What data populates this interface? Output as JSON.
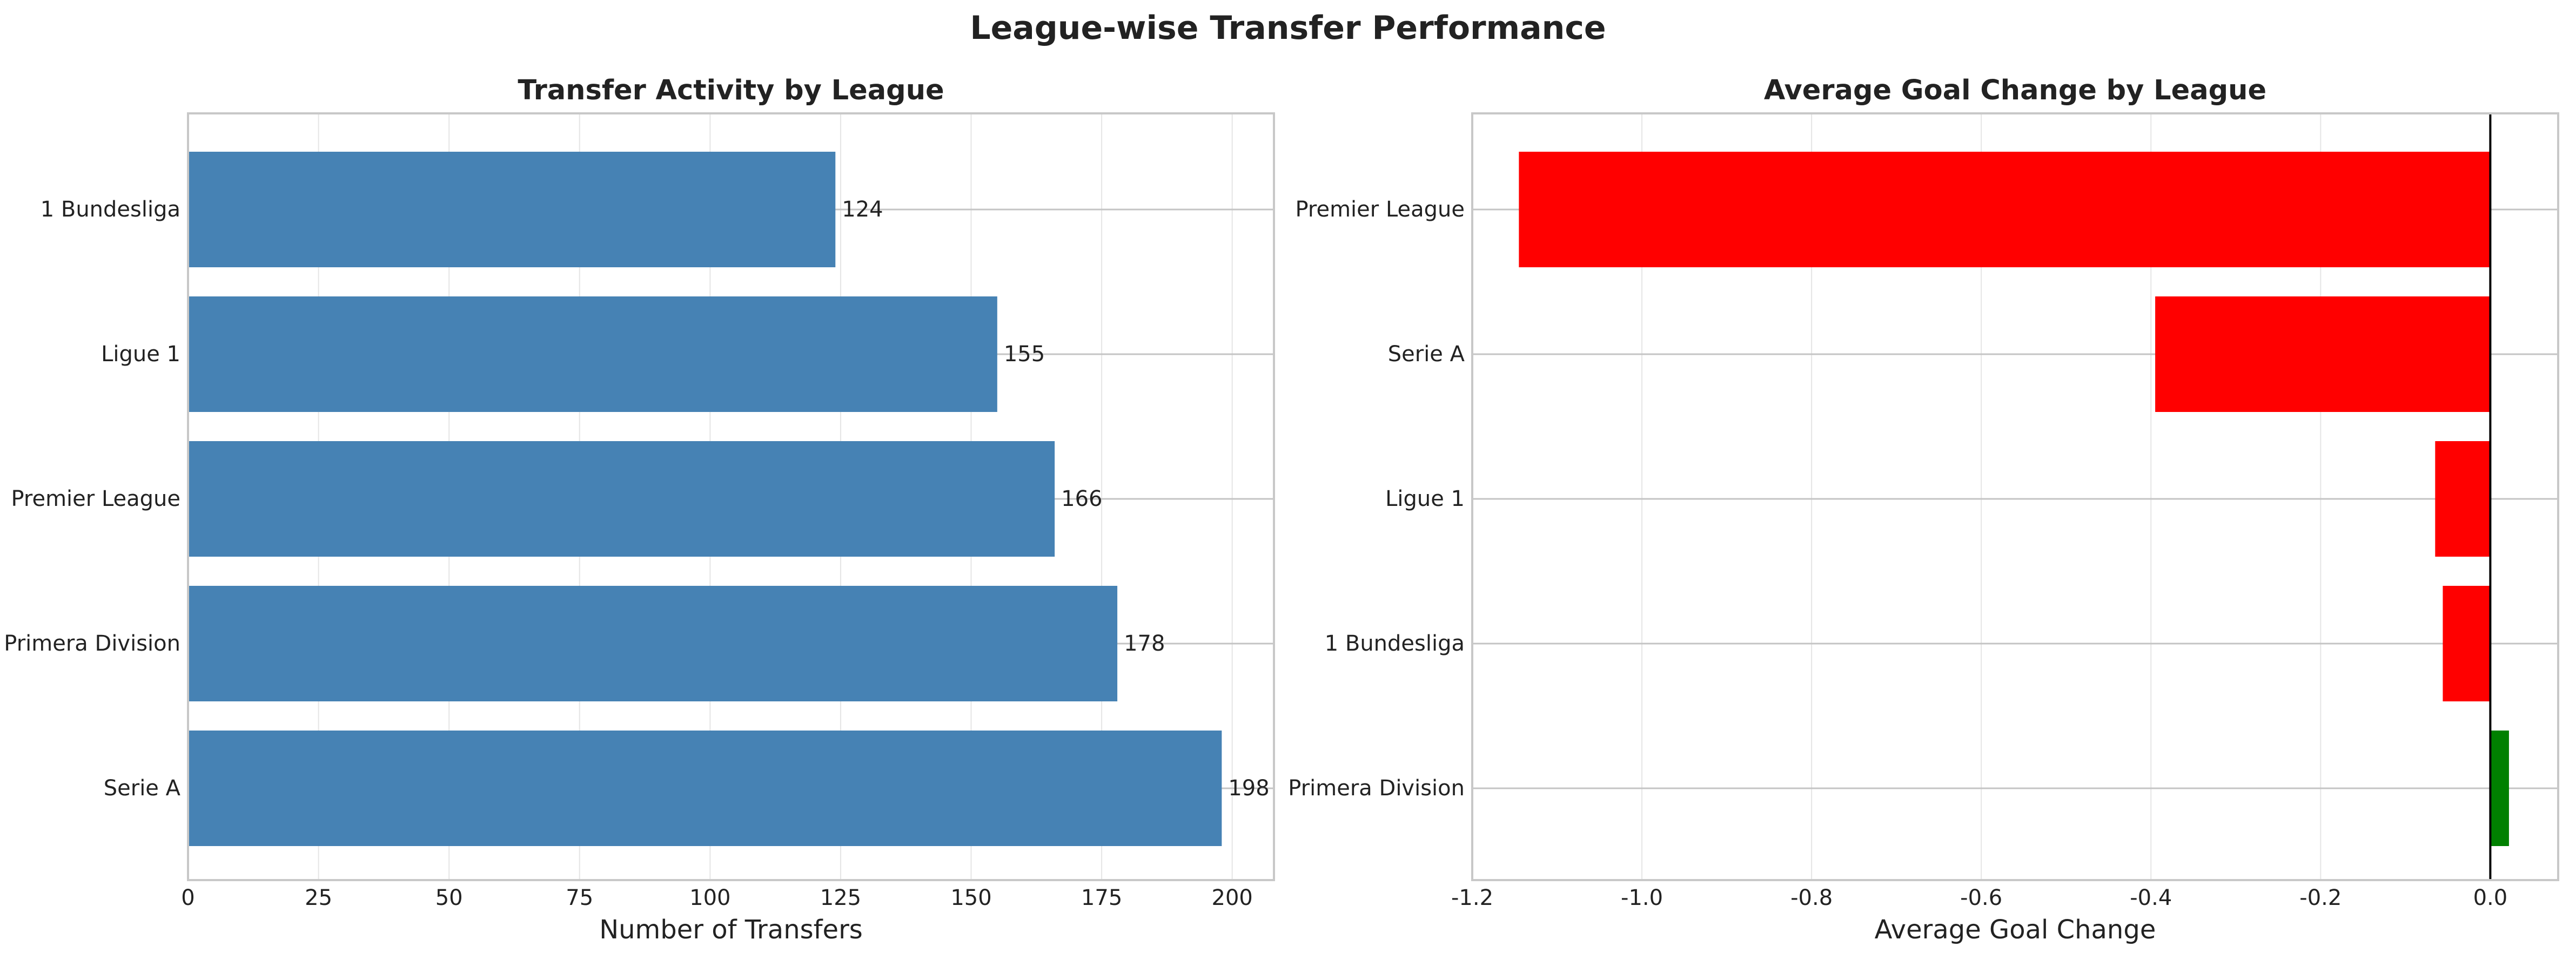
{
  "figure": {
    "title": "League-wise Transfer Performance"
  },
  "chart_data": [
    {
      "type": "bar",
      "orientation": "horizontal",
      "title": "Transfer Activity by League",
      "xlabel": "Number of Transfers",
      "ylabel": "",
      "categories": [
        "Serie A",
        "Primera Division",
        "Premier League",
        "Ligue 1",
        "1 Bundesliga"
      ],
      "values": [
        198,
        178,
        166,
        155,
        124
      ],
      "data_labels": [
        "198",
        "178",
        "166",
        "155",
        "124"
      ],
      "xlim": [
        0,
        208
      ],
      "xticks": [
        0,
        25,
        50,
        75,
        100,
        125,
        150,
        175,
        200
      ],
      "xtick_labels": [
        "0",
        "25",
        "50",
        "75",
        "100",
        "125",
        "150",
        "175",
        "200"
      ],
      "bar_color": "#4682b4",
      "grid": true
    },
    {
      "type": "bar",
      "orientation": "horizontal",
      "title": "Average Goal Change by League",
      "xlabel": "Average Goal Change",
      "ylabel": "",
      "categories": [
        "Primera Division",
        "1 Bundesliga",
        "Ligue 1",
        "Serie A",
        "Premier League"
      ],
      "values": [
        0.022,
        -0.056,
        -0.065,
        -0.395,
        -1.145
      ],
      "xlim": [
        -1.2,
        0.08
      ],
      "xticks": [
        -1.2,
        -1.0,
        -0.8,
        -0.6,
        -0.4,
        -0.2,
        0.0
      ],
      "xtick_labels": [
        "-1.2",
        "-1.0",
        "-0.8",
        "-0.6",
        "-0.4",
        "-0.2",
        "0.0"
      ],
      "positive_color": "#008000",
      "negative_color": "#ff0000",
      "zero_line_color": "#000000",
      "grid": true
    }
  ]
}
